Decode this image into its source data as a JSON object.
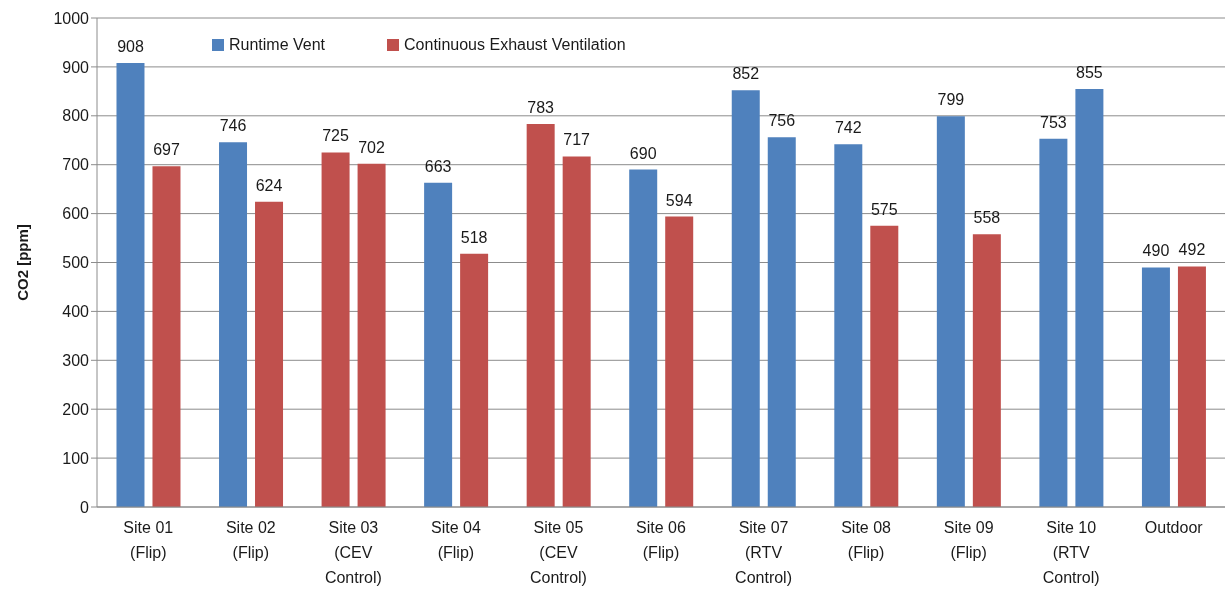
{
  "chart_data": {
    "type": "bar",
    "ylabel": "CO2 [ppm]",
    "categories": [
      "Site 01 (Flip)",
      "Site 02 (Flip)",
      "Site 03 (CEV Control)",
      "Site 04 (Flip)",
      "Site 05 (CEV Control)",
      "Site 06 (Flip)",
      "Site 07 (RTV Control)",
      "Site 08 (Flip)",
      "Site 09 (Flip)",
      "Site 10 (RTV Control)",
      "Outdoor"
    ],
    "series": [
      {
        "name": "Runtime Vent",
        "color": "#4f81bd",
        "colors": [
          "#4f81bd",
          "#4f81bd",
          "#c0504d",
          "#4f81bd",
          "#c0504d",
          "#4f81bd",
          "#4f81bd",
          "#4f81bd",
          "#4f81bd",
          "#4f81bd",
          "#4f81bd"
        ],
        "values": [
          908,
          746,
          725,
          663,
          783,
          690,
          852,
          742,
          799,
          753,
          490
        ]
      },
      {
        "name": "Continuous Exhaust Ventilation",
        "color": "#c0504d",
        "colors": [
          "#c0504d",
          "#c0504d",
          "#c0504d",
          "#c0504d",
          "#c0504d",
          "#c0504d",
          "#4f81bd",
          "#c0504d",
          "#c0504d",
          "#4f81bd",
          "#c0504d"
        ],
        "values": [
          697,
          624,
          702,
          518,
          717,
          594,
          756,
          575,
          558,
          855,
          492
        ]
      }
    ],
    "ylim": [
      0,
      1000
    ],
    "yticks": [
      0,
      100,
      200,
      300,
      400,
      500,
      600,
      700,
      800,
      900,
      1000
    ],
    "grid": "y",
    "legend": "top",
    "data_labels": true
  }
}
